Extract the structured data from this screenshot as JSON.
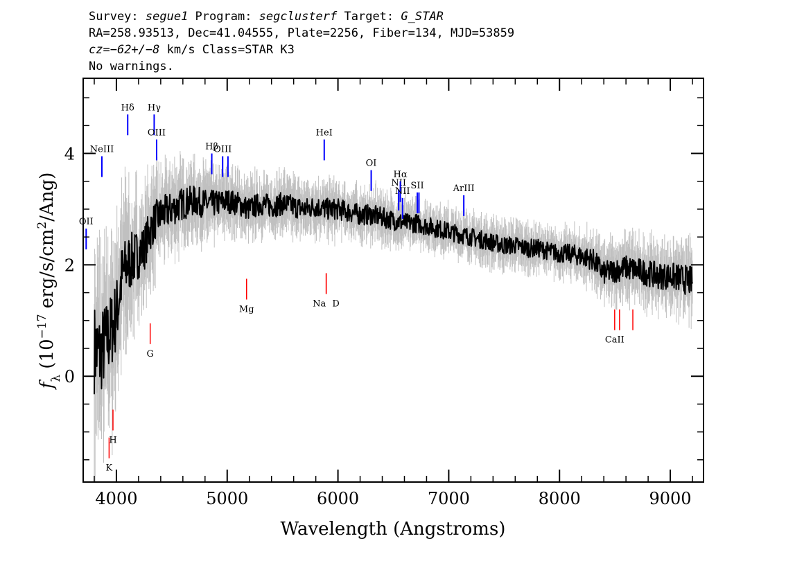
{
  "header": {
    "survey_label": "Survey: ",
    "survey": "segue1",
    "program_label": " Program: ",
    "program": "segclusterf",
    "target_label": " Target: ",
    "target": "G_STAR",
    "line2": "RA=258.93513, Dec=41.04555, Plate=2256, Fiber=134, MJD=53859",
    "cz_label": "cz",
    "cz_value": "=−62+/−8",
    "cz_rest": " km/s Class=STAR K3",
    "warnings": "No warnings."
  },
  "colors": {
    "flux": "#000000",
    "error_band": "#c0c0c0",
    "emission_line": "#0000ff",
    "absorption_line": "#ff0000",
    "frame": "#000000"
  },
  "chart_data": {
    "type": "line",
    "title": "",
    "xlabel": "Wavelength (Angstroms)",
    "ylabel_parts": [
      "f",
      "λ",
      " (10",
      "−17",
      " erg/s/cm",
      "2",
      "/Ang)"
    ],
    "xlim": [
      3700,
      9300
    ],
    "ylim": [
      -1.9,
      5.35
    ],
    "xticks": [
      4000,
      5000,
      6000,
      7000,
      8000,
      9000
    ],
    "xtick_labels": [
      "4000",
      "5000",
      "6000",
      "7000",
      "8000",
      "9000"
    ],
    "yticks": [
      0,
      2,
      4
    ],
    "ytick_labels": [
      "0",
      "2",
      "4"
    ],
    "grid": false,
    "series": [
      {
        "kind": "smoothed_flux",
        "x": [
          3800,
          3850,
          3900,
          3950,
          4000,
          4050,
          4100,
          4150,
          4200,
          4250,
          4300,
          4350,
          4400,
          4450,
          4500,
          4600,
          4700,
          4800,
          4900,
          5000,
          5100,
          5200,
          5300,
          5400,
          5500,
          5600,
          5700,
          5800,
          5900,
          6000,
          6100,
          6200,
          6300,
          6400,
          6500,
          6600,
          6700,
          6800,
          6900,
          7000,
          7100,
          7200,
          7300,
          7400,
          7500,
          7600,
          7700,
          7800,
          7900,
          8000,
          8100,
          8200,
          8300,
          8400,
          8500,
          8600,
          8700,
          8800,
          8900,
          9000,
          9100,
          9200
        ],
        "y": [
          0.5,
          0.4,
          0.6,
          0.8,
          1.1,
          1.8,
          2.0,
          2.1,
          2.2,
          2.3,
          2.6,
          2.8,
          2.9,
          2.95,
          3.0,
          3.1,
          3.15,
          3.1,
          3.1,
          3.15,
          3.1,
          3.0,
          3.1,
          3.05,
          3.1,
          3.05,
          3.0,
          3.05,
          3.0,
          3.0,
          2.95,
          2.9,
          2.9,
          2.85,
          2.8,
          2.75,
          2.75,
          2.7,
          2.65,
          2.6,
          2.55,
          2.5,
          2.45,
          2.4,
          2.35,
          2.35,
          2.3,
          2.3,
          2.25,
          2.2,
          2.2,
          2.15,
          2.1,
          1.85,
          1.9,
          1.95,
          1.9,
          1.85,
          1.8,
          1.8,
          1.75,
          1.7
        ]
      }
    ],
    "error_band_halfwidth": {
      "x": [
        3800,
        4000,
        4200,
        4400,
        5000,
        6000,
        7000,
        8000,
        8500,
        9000,
        9200
      ],
      "y": [
        1.5,
        1.2,
        0.8,
        0.6,
        0.4,
        0.35,
        0.3,
        0.3,
        0.4,
        0.45,
        0.5
      ]
    },
    "emission_lines": [
      {
        "label": "OII",
        "x": 3727,
        "y": 2.65
      },
      {
        "label": "NeIII",
        "x": 3869,
        "y": 3.95
      },
      {
        "label": "Hδ",
        "x": 4102,
        "y": 4.7
      },
      {
        "label": "Hγ",
        "x": 4341,
        "y": 4.7
      },
      {
        "label": "OIII",
        "x": 4363,
        "y": 4.25
      },
      {
        "label": "Hβ",
        "x": 4861,
        "y": 4.0
      },
      {
        "label": "OIII",
        "x": 4959,
        "y": 3.95
      },
      {
        "label": "",
        "x": 5007,
        "y": 3.95
      },
      {
        "label": "HeI",
        "x": 5876,
        "y": 4.25
      },
      {
        "label": "OI",
        "x": 6300,
        "y": 3.7
      },
      {
        "label": "NII",
        "x": 6548,
        "y": 3.35
      },
      {
        "label": "Hα",
        "x": 6563,
        "y": 3.5
      },
      {
        "label": "NII",
        "x": 6583,
        "y": 3.2
      },
      {
        "label": "SII",
        "x": 6716,
        "y": 3.3
      },
      {
        "label": "",
        "x": 6731,
        "y": 3.3
      },
      {
        "label": "ArIII",
        "x": 7136,
        "y": 3.25
      }
    ],
    "absorption_lines": [
      {
        "label": "K",
        "x": 3934,
        "y": -1.1
      },
      {
        "label": "H",
        "x": 3969,
        "y": -0.6
      },
      {
        "label": "G",
        "x": 4305,
        "y": 0.95
      },
      {
        "label": "Mg",
        "x": 5175,
        "y": 1.75
      },
      {
        "label": "Na",
        "x": 5894,
        "y": 1.85
      },
      {
        "label": "D",
        "x": 5894,
        "y": 1.85
      },
      {
        "label": "CaII",
        "x": 8498,
        "y": 1.2
      },
      {
        "label": "",
        "x": 8542,
        "y": 1.2
      },
      {
        "label": "",
        "x": 8662,
        "y": 1.2
      }
    ]
  }
}
